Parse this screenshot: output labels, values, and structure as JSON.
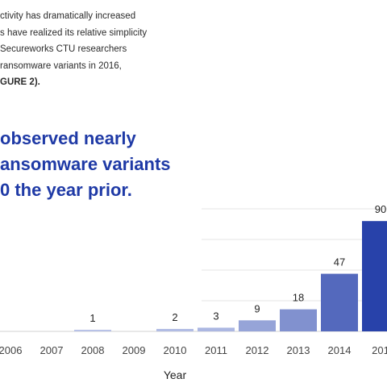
{
  "intro": {
    "lines": [
      "ctivity has dramatically increased",
      "s have realized its relative simplicity",
      "Secureworks CTU researchers",
      "ransomware variants in 2016,",
      "GURE 2)."
    ]
  },
  "callout": {
    "lines": [
      "observed nearly",
      "ansomware variants",
      "0 the year prior."
    ]
  },
  "chart_data": {
    "type": "bar",
    "title": "",
    "xlabel": "Year",
    "ylabel": "",
    "categories": [
      "2006",
      "2007",
      "2008",
      "2009",
      "2010",
      "2011",
      "2012",
      "2013",
      "2014",
      "201"
    ],
    "values": [
      0,
      0,
      1,
      0,
      2,
      3,
      9,
      18,
      47,
      90
    ],
    "data_labels": [
      "",
      "",
      "1",
      "",
      "2",
      "3",
      "9",
      "18",
      "47",
      "90"
    ],
    "ylim": [
      0,
      100
    ],
    "grid": true,
    "legend": "none",
    "colors": {
      "bar_light": "#c9d1ee",
      "bar_dark": "#1f3aa6",
      "grid": "#e6e6e6",
      "baseline": "#d0d0d0"
    }
  }
}
